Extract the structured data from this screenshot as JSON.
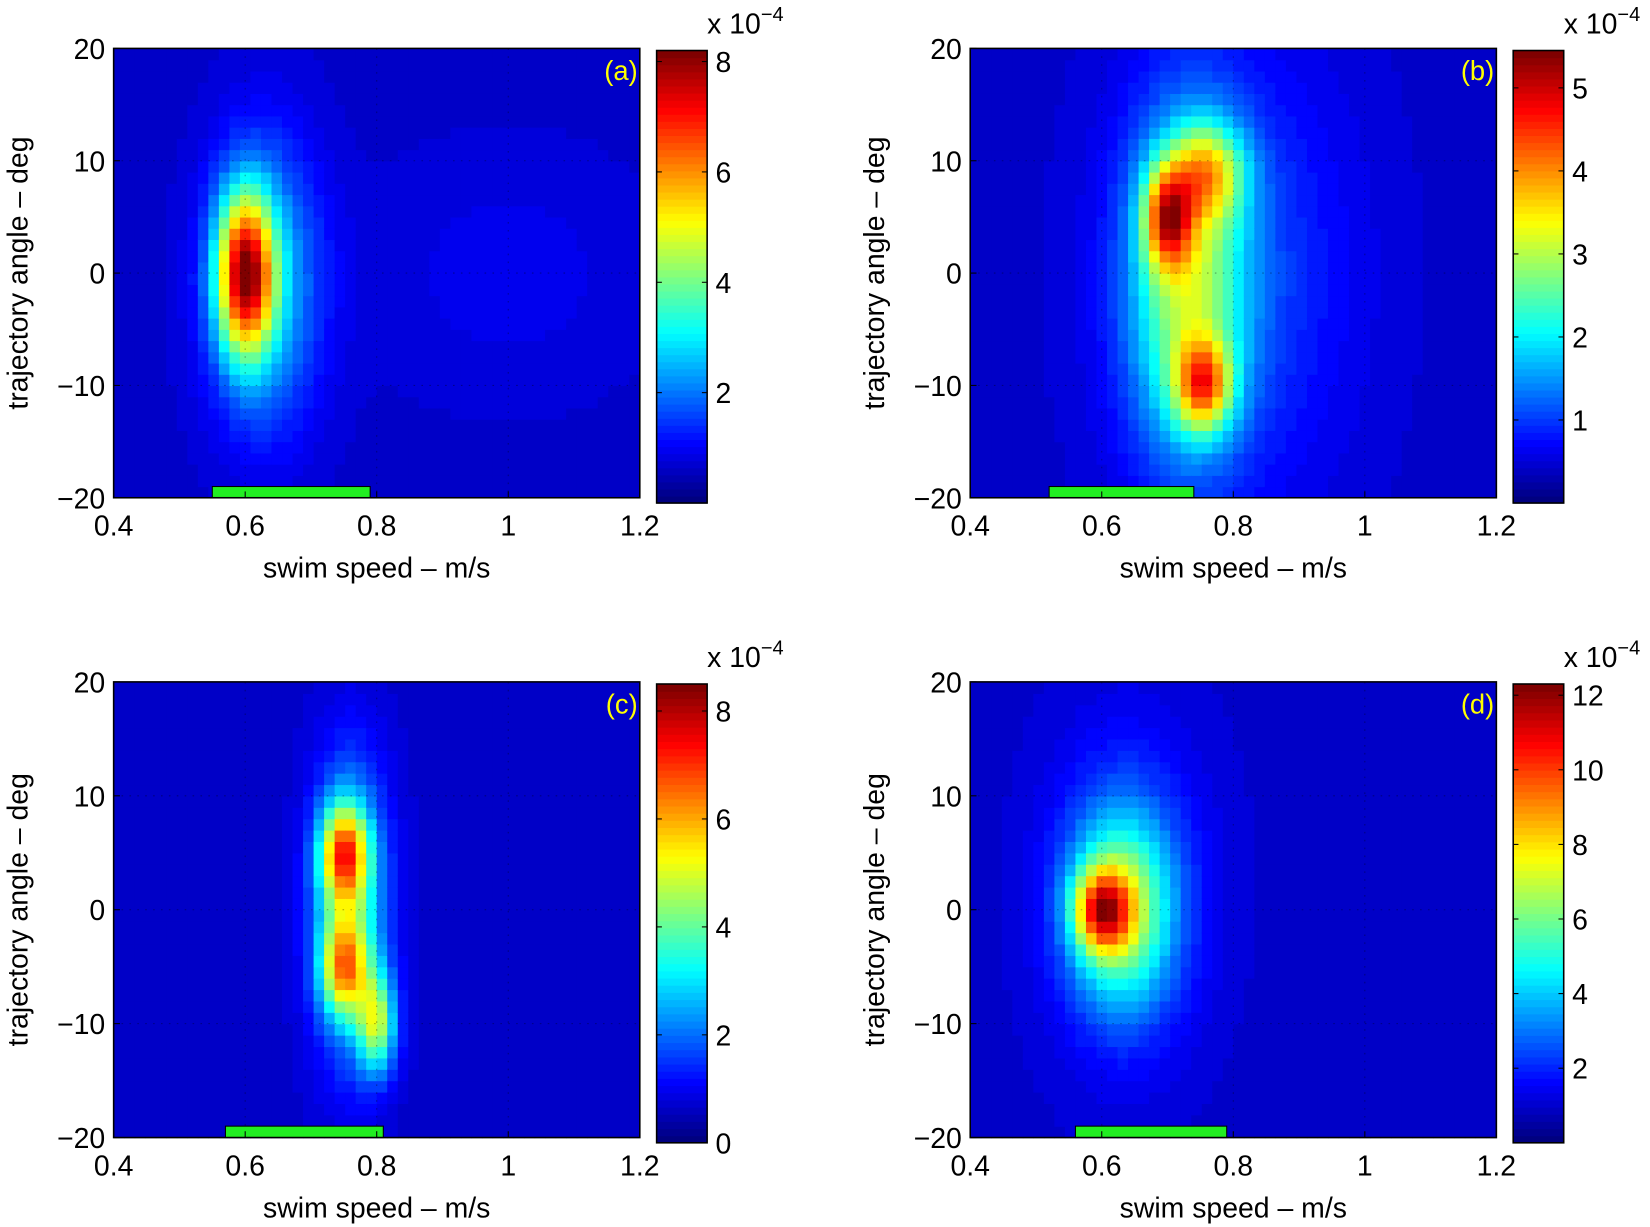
{
  "chart_data": [
    {
      "type": "heatmap",
      "panel_label": "(a)",
      "xlabel": "swim speed – m/s",
      "ylabel": "trajectory angle – deg",
      "xlim": [
        0.4,
        1.2
      ],
      "ylim": [
        -20,
        20
      ],
      "xticks": [
        "0.4",
        "0.6",
        "0.8",
        "1",
        "1.2"
      ],
      "yticks": [
        "20",
        "10",
        "0",
        "−10",
        "−20"
      ],
      "colorbar": {
        "multiplier": "x 10",
        "exponent": "−4",
        "clim": [
          0,
          8.2
        ],
        "ticks": [
          "2",
          "4",
          "6",
          "8"
        ],
        "tick_values": [
          2,
          4,
          6,
          8
        ],
        "colormap": "jet"
      },
      "grid": "dotted",
      "green_bar": {
        "x_range": [
          0.55,
          0.79
        ],
        "color": "#22ee22"
      },
      "peaks": [
        {
          "x": 0.6,
          "y": 0,
          "value": 6.6,
          "sx": 0.03,
          "sy": 5
        },
        {
          "x": 0.63,
          "y": -1,
          "value": 2.2,
          "sx": 0.06,
          "sy": 9
        },
        {
          "x": 1.0,
          "y": 0,
          "value": 0.35,
          "sx": 0.15,
          "sy": 8
        }
      ]
    },
    {
      "type": "heatmap",
      "panel_label": "(b)",
      "xlabel": "swim speed – m/s",
      "ylabel": "trajectory angle – deg",
      "xlim": [
        0.4,
        1.2
      ],
      "ylim": [
        -20,
        20
      ],
      "xticks": [
        "0.4",
        "0.6",
        "0.8",
        "1",
        "1.2"
      ],
      "yticks": [
        "20",
        "10",
        "0",
        "−10",
        "−20"
      ],
      "colorbar": {
        "multiplier": "x 10",
        "exponent": "−4",
        "clim": [
          0,
          5.45
        ],
        "ticks": [
          "1",
          "2",
          "3",
          "4",
          "5"
        ],
        "tick_values": [
          1,
          2,
          3,
          4,
          5
        ],
        "colormap": "jet"
      },
      "grid": "dotted",
      "green_bar": {
        "x_range": [
          0.52,
          0.74
        ],
        "color": "#22ee22"
      },
      "peaks": [
        {
          "x": 0.7,
          "y": 5,
          "value": 3.0,
          "sx": 0.025,
          "sy": 3
        },
        {
          "x": 0.755,
          "y": -10,
          "value": 2.8,
          "sx": 0.03,
          "sy": 2.8
        },
        {
          "x": 0.76,
          "y": 9,
          "value": 2.2,
          "sx": 0.04,
          "sy": 3
        },
        {
          "x": 0.73,
          "y": -1,
          "value": 2.4,
          "sx": 0.06,
          "sy": 10
        },
        {
          "x": 0.8,
          "y": 0,
          "value": 0.7,
          "sx": 0.13,
          "sy": 15
        }
      ]
    },
    {
      "type": "heatmap",
      "panel_label": "(c)",
      "xlabel": "swim speed – m/s",
      "ylabel": "trajectory angle – deg",
      "xlim": [
        0.4,
        1.2
      ],
      "ylim": [
        -20,
        20
      ],
      "xticks": [
        "0.4",
        "0.6",
        "0.8",
        "1",
        "1.2"
      ],
      "yticks": [
        "20",
        "10",
        "0",
        "−10",
        "−20"
      ],
      "colorbar": {
        "multiplier": "x 10",
        "exponent": "−4",
        "clim": [
          0,
          8.5
        ],
        "ticks": [
          "0",
          "2",
          "4",
          "6",
          "8"
        ],
        "tick_values": [
          0,
          2,
          4,
          6,
          8
        ],
        "colormap": "jet"
      },
      "grid": "dotted",
      "green_bar": {
        "x_range": [
          0.57,
          0.81
        ],
        "color": "#22ee22"
      },
      "peaks": [
        {
          "x": 0.75,
          "y": 5,
          "value": 5.0,
          "sx": 0.025,
          "sy": 3
        },
        {
          "x": 0.75,
          "y": -5,
          "value": 4.2,
          "sx": 0.025,
          "sy": 3
        },
        {
          "x": 0.8,
          "y": -10,
          "value": 3.8,
          "sx": 0.02,
          "sy": 3
        },
        {
          "x": 0.76,
          "y": 0,
          "value": 3.0,
          "sx": 0.04,
          "sy": 9
        }
      ]
    },
    {
      "type": "heatmap",
      "panel_label": "(d)",
      "xlabel": "swim speed – m/s",
      "ylabel": "trajectory angle – deg",
      "xlim": [
        0.4,
        1.2
      ],
      "ylim": [
        -20,
        20
      ],
      "xticks": [
        "0.4",
        "0.6",
        "0.8",
        "1",
        "1.2"
      ],
      "yticks": [
        "20",
        "10",
        "0",
        "−10",
        "−20"
      ],
      "colorbar": {
        "multiplier": "x 10",
        "exponent": "−4",
        "clim": [
          0,
          12.3
        ],
        "ticks": [
          "2",
          "4",
          "6",
          "8",
          "10",
          "12"
        ],
        "tick_values": [
          2,
          4,
          6,
          8,
          10,
          12
        ],
        "colormap": "jet"
      },
      "grid": "dotted",
      "green_bar": {
        "x_range": [
          0.56,
          0.79
        ],
        "color": "#22ee22"
      },
      "peaks": [
        {
          "x": 0.6,
          "y": 0,
          "value": 6.5,
          "sx": 0.03,
          "sy": 2.5
        },
        {
          "x": 0.63,
          "y": 0,
          "value": 5.5,
          "sx": 0.055,
          "sy": 6
        },
        {
          "x": 0.64,
          "y": 2,
          "value": 1.3,
          "sx": 0.09,
          "sy": 11
        }
      ]
    }
  ]
}
